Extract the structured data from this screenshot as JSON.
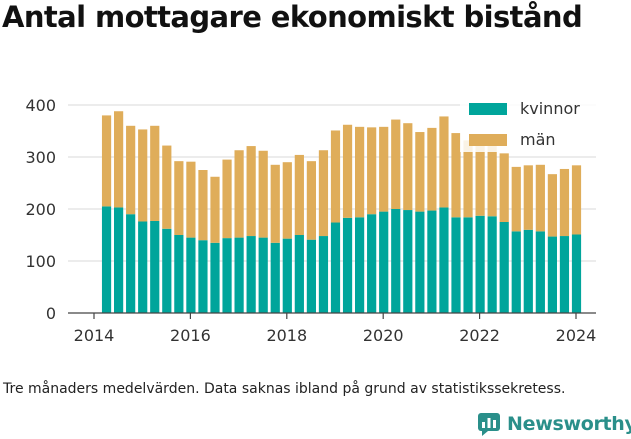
{
  "title": "Antal mottagare ekonomiskt bistånd",
  "footnote": "Tre månaders medelvärden. Data saknas ibland på grund av statistikssekretess.",
  "brand": {
    "name": "Newsworthy",
    "color": "#2a8f8a",
    "icon": "newsworthy-logo-icon"
  },
  "chart_data": {
    "type": "bar",
    "stacked": true,
    "ylim": [
      0,
      400
    ],
    "yticks": [
      0,
      100,
      200,
      300,
      400
    ],
    "xticks": [
      "2014",
      "2016",
      "2018",
      "2020",
      "2022",
      "2024"
    ],
    "grid": true,
    "legend_position": "top-right",
    "x_start": "2014-04",
    "x_step_months": 3,
    "series": [
      {
        "name": "kvinnor",
        "color": "#00a59b",
        "values": [
          205,
          203,
          190,
          176,
          177,
          162,
          150,
          145,
          140,
          135,
          144,
          145,
          148,
          145,
          135,
          143,
          150,
          141,
          148,
          174,
          183,
          184,
          190,
          195,
          200,
          198,
          195,
          197,
          203,
          184,
          184,
          187,
          186,
          175,
          157,
          160,
          157,
          147,
          148,
          151
        ]
      },
      {
        "name": "män",
        "color": "#dfad5a",
        "values": [
          175,
          185,
          170,
          177,
          183,
          160,
          142,
          146,
          135,
          127,
          151,
          168,
          173,
          167,
          150,
          147,
          154,
          151,
          165,
          177,
          179,
          174,
          167,
          163,
          172,
          167,
          153,
          159,
          175,
          162,
          148,
          146,
          143,
          132,
          124,
          124,
          128,
          120,
          129,
          133
        ]
      }
    ]
  }
}
